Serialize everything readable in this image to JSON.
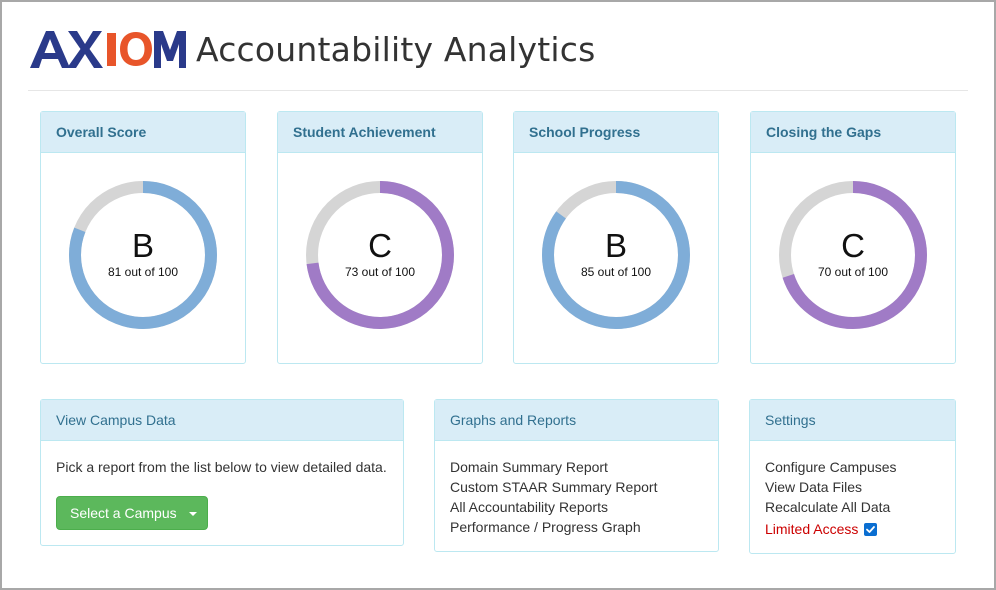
{
  "header": {
    "logo_text": "AXIOM",
    "title": "Accountability Analytics"
  },
  "colors": {
    "blue_ring": "#7fadd8",
    "purple_ring": "#a07bc6",
    "remainder_ring": "#d5d5d5",
    "panel_heading_bg": "#d9edf7",
    "panel_heading_text": "#31708f",
    "button_green": "#5cb85c",
    "limited_red": "#cc0000",
    "logo_navy": "#2a3a8a",
    "logo_orange": "#e8552a"
  },
  "score_cards": [
    {
      "title": "Overall Score",
      "grade": "B",
      "score_text": "81 out of 100",
      "score": 81,
      "ring_color": "blue"
    },
    {
      "title": "Student Achievement",
      "grade": "C",
      "score_text": "73 out of 100",
      "score": 73,
      "ring_color": "purple"
    },
    {
      "title": "School Progress",
      "grade": "B",
      "score_text": "85 out of 100",
      "score": 85,
      "ring_color": "blue"
    },
    {
      "title": "Closing the Gaps",
      "grade": "C",
      "score_text": "70 out of 100",
      "score": 70,
      "ring_color": "purple"
    }
  ],
  "campus_panel": {
    "title": "View Campus Data",
    "description": "Pick a report from the list below to view detailed data.",
    "button_label": "Select a Campus"
  },
  "reports_panel": {
    "title": "Graphs and Reports",
    "links": [
      "Domain Summary Report",
      "Custom STAAR Summary Report",
      "All Accountability Reports",
      "Performance / Progress Graph"
    ]
  },
  "settings_panel": {
    "title": "Settings",
    "links": [
      "Configure Campuses",
      "View Data Files",
      "Recalculate All Data"
    ],
    "limited_access_label": "Limited Access",
    "limited_access_checked": true
  }
}
